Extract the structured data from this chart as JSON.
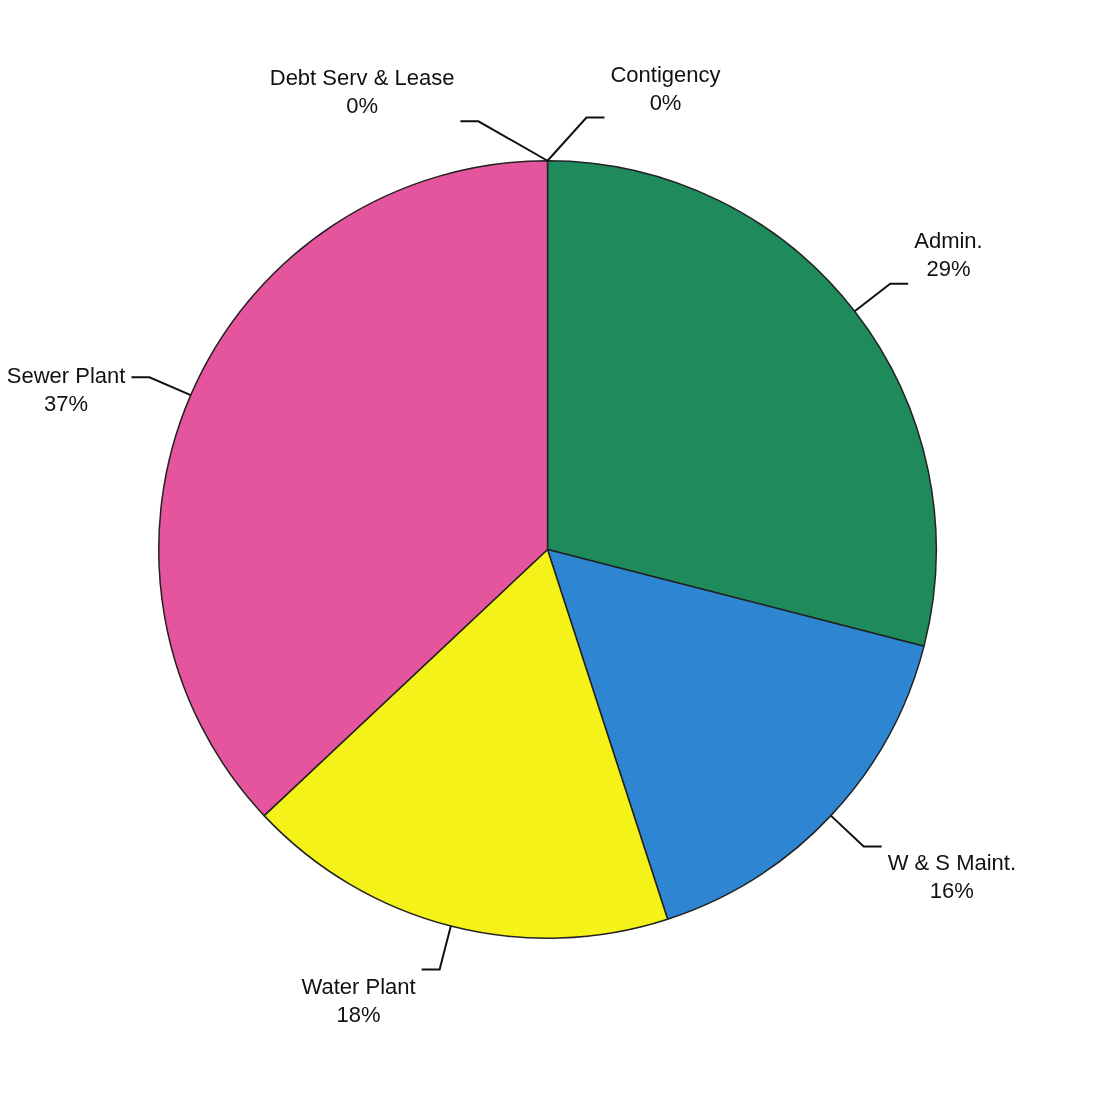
{
  "chart_data": {
    "type": "pie",
    "categories": [
      "Contigency",
      "Admin.",
      "W & S Maint.",
      "Water Plant",
      "Sewer Plant",
      "Debt Serv & Lease"
    ],
    "values": [
      0,
      29,
      16,
      18,
      37,
      0
    ],
    "colors": [
      "#e03c3c",
      "#1f8a5c",
      "#2e86d2",
      "#f4f218",
      "#e4559e",
      "#9a9a9a"
    ],
    "value_labels": [
      "0%",
      "29%",
      "16%",
      "18%",
      "37%",
      "0%"
    ],
    "legend": false
  }
}
